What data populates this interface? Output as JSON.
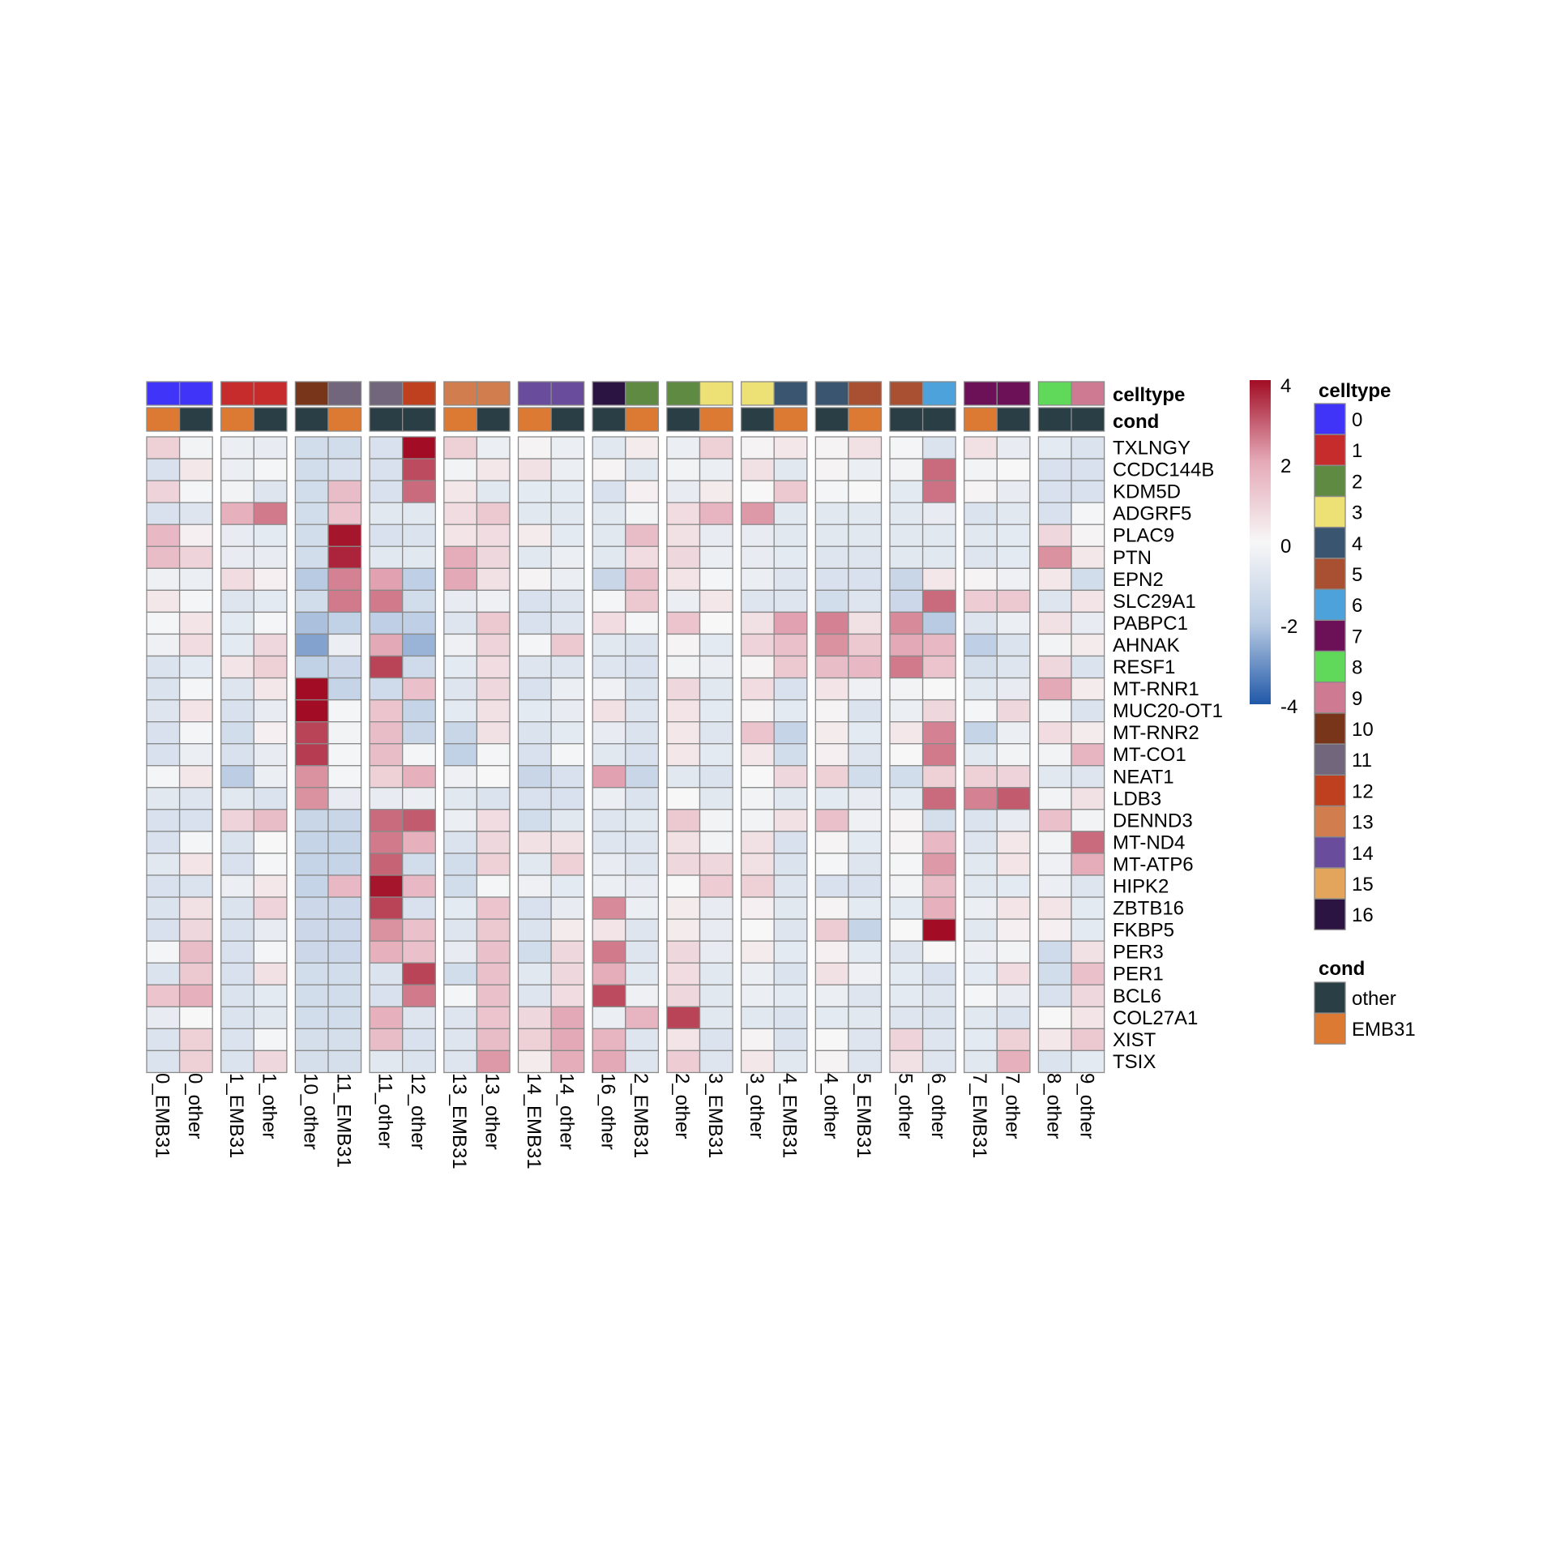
{
  "chart_data": {
    "type": "heatmap",
    "annotation_tracks": [
      "celltype",
      "cond"
    ],
    "columns": [
      "0_EMB31",
      "0_other",
      "1_EMB31",
      "1_other",
      "10_other",
      "11_EMB31",
      "11_other",
      "12_other",
      "13_EMB31",
      "13_other",
      "14_EMB31",
      "14_other",
      "16_other",
      "2_EMB31",
      "2_other",
      "3_EMB31",
      "3_other",
      "4_EMB31",
      "4_other",
      "5_EMB31",
      "5_other",
      "6_other",
      "7_EMB31",
      "7_other",
      "8_other",
      "9_other"
    ],
    "column_celltype": [
      "0",
      "0",
      "1",
      "1",
      "10",
      "11",
      "11",
      "12",
      "13",
      "13",
      "14",
      "14",
      "16",
      "2",
      "2",
      "3",
      "3",
      "4",
      "4",
      "5",
      "5",
      "6",
      "7",
      "7",
      "8",
      "9"
    ],
    "column_cond": [
      "EMB31",
      "other",
      "EMB31",
      "other",
      "other",
      "EMB31",
      "other",
      "other",
      "EMB31",
      "other",
      "EMB31",
      "other",
      "other",
      "EMB31",
      "other",
      "EMB31",
      "other",
      "EMB31",
      "other",
      "EMB31",
      "other",
      "other",
      "EMB31",
      "other",
      "other",
      "other"
    ],
    "rows": [
      "TXLNGY",
      "CCDC144B",
      "KDM5D",
      "ADGRF5",
      "PLAC9",
      "PTN",
      "EPN2",
      "SLC29A1",
      "PABPC1",
      "AHNAK",
      "RESF1",
      "MT-RNR1",
      "MUC20-OT1",
      "MT-RNR2",
      "MT-CO1",
      "NEAT1",
      "LDB3",
      "DENND3",
      "MT-ND4",
      "MT-ATP6",
      "HIPK2",
      "ZBTB16",
      "FKBP5",
      "PER3",
      "PER1",
      "BCL6",
      "COL27A1",
      "XIST",
      "TSIX"
    ],
    "values": [
      [
        1.0,
        -0.2,
        -0.4,
        -0.5,
        -1.2,
        -1.2,
        -1.0,
        4.1,
        1.0,
        -0.4,
        0.1,
        -0.4,
        -0.7,
        0.3,
        -0.4,
        1.0,
        0.1,
        0.4,
        0.1,
        0.6,
        -0.1,
        -0.9,
        0.6,
        -0.5,
        -0.6,
        -0.9
      ],
      [
        -1.0,
        0.4,
        -0.4,
        -0.1,
        -1.2,
        -1.0,
        -1.0,
        3.2,
        -0.2,
        0.4,
        0.6,
        -0.4,
        0.1,
        -0.7,
        -0.2,
        -0.4,
        0.6,
        -0.7,
        0.1,
        -0.4,
        -0.2,
        2.8,
        -0.2,
        0.0,
        -1.0,
        -1.0
      ],
      [
        0.9,
        -0.1,
        -0.2,
        -0.8,
        -1.2,
        1.5,
        -1.0,
        2.8,
        0.4,
        -0.7,
        -0.6,
        -0.6,
        -1.0,
        0.2,
        -0.5,
        0.3,
        0.0,
        1.2,
        -0.1,
        0.0,
        -0.6,
        2.7,
        0.1,
        -0.5,
        -1.0,
        -1.0
      ],
      [
        -1.0,
        -0.8,
        1.8,
        2.6,
        -1.2,
        1.3,
        -0.7,
        -0.7,
        0.7,
        1.2,
        -0.7,
        -0.7,
        -0.7,
        -0.2,
        0.7,
        1.7,
        2.2,
        -0.7,
        -0.7,
        -0.7,
        -0.7,
        -0.5,
        -0.9,
        -0.7,
        -1.0,
        -0.1
      ],
      [
        1.6,
        0.2,
        -0.5,
        -0.6,
        -1.2,
        3.9,
        -1.0,
        -0.9,
        0.5,
        0.7,
        0.3,
        -0.6,
        -0.7,
        1.5,
        0.6,
        -0.5,
        -0.5,
        -0.7,
        -0.7,
        -0.7,
        -0.7,
        -0.7,
        -0.7,
        -0.6,
        0.8,
        0.1
      ],
      [
        1.5,
        0.9,
        -0.5,
        -0.5,
        -1.2,
        3.7,
        -0.7,
        -0.7,
        1.9,
        0.8,
        -0.7,
        -0.4,
        -0.7,
        0.7,
        0.8,
        -0.4,
        -0.5,
        -0.6,
        -0.8,
        -0.8,
        -0.7,
        -0.7,
        -0.8,
        -0.6,
        2.3,
        0.4
      ],
      [
        -0.3,
        -0.4,
        0.7,
        0.2,
        -2.0,
        2.5,
        2.1,
        -1.8,
        2.0,
        0.6,
        0.1,
        -0.4,
        -1.5,
        1.4,
        0.5,
        -0.1,
        -0.4,
        -0.8,
        -1.0,
        -1.0,
        -1.5,
        0.4,
        0.1,
        -0.3,
        0.4,
        -1.2
      ],
      [
        0.4,
        -0.1,
        -0.8,
        -0.6,
        -1.2,
        2.6,
        2.6,
        -1.2,
        -0.5,
        -0.3,
        -1.0,
        -0.8,
        -0.1,
        1.2,
        -0.4,
        0.4,
        -0.8,
        -0.8,
        -1.2,
        -0.8,
        -1.4,
        2.8,
        1.1,
        1.2,
        -0.8,
        0.5
      ],
      [
        -0.1,
        0.5,
        -0.6,
        -0.1,
        -2.2,
        -1.7,
        -1.8,
        -1.8,
        -0.8,
        1.2,
        -1.0,
        -0.8,
        0.7,
        -0.1,
        1.3,
        0.0,
        0.6,
        2.1,
        2.5,
        0.6,
        2.4,
        -2.0,
        -0.8,
        -0.4,
        0.6,
        -0.5
      ],
      [
        -0.3,
        0.7,
        -0.6,
        0.8,
        -2.7,
        -0.4,
        2.0,
        -2.4,
        -0.3,
        0.9,
        -0.1,
        1.2,
        -0.7,
        -0.9,
        0.1,
        -0.6,
        0.9,
        1.4,
        2.3,
        1.2,
        2.0,
        1.6,
        -1.8,
        -0.9,
        -0.2,
        0.3
      ],
      [
        -0.9,
        -0.6,
        0.5,
        1.0,
        -1.7,
        -1.4,
        3.3,
        -1.3,
        -0.6,
        0.7,
        -0.8,
        -0.8,
        -0.8,
        -1.0,
        -0.2,
        -0.4,
        0.1,
        1.2,
        1.5,
        1.6,
        2.6,
        1.3,
        -1.1,
        -0.8,
        0.8,
        -0.9
      ],
      [
        -0.9,
        -0.1,
        -0.8,
        0.4,
        4.3,
        -1.6,
        -1.3,
        1.4,
        -0.8,
        0.8,
        -1.0,
        -0.4,
        -0.3,
        -0.9,
        0.8,
        -0.7,
        0.7,
        -1.0,
        0.5,
        -0.3,
        -0.2,
        0.0,
        -0.7,
        -0.5,
        2.0,
        0.3
      ],
      [
        -0.8,
        0.5,
        -1.0,
        -0.5,
        4.3,
        -0.1,
        1.3,
        -1.6,
        -0.6,
        0.6,
        -0.6,
        -0.5,
        0.6,
        -0.8,
        0.5,
        -0.6,
        0.1,
        -0.6,
        0.1,
        -0.9,
        -0.4,
        0.8,
        -0.1,
        0.8,
        -0.2,
        -0.9
      ],
      [
        -1.0,
        -0.1,
        -1.2,
        0.2,
        3.3,
        -0.2,
        1.5,
        -1.5,
        -1.5,
        0.6,
        -0.9,
        -0.6,
        -0.5,
        -0.9,
        0.4,
        -0.8,
        1.3,
        -1.6,
        0.3,
        -0.6,
        0.4,
        2.5,
        -1.6,
        -0.4,
        0.7,
        0.3
      ],
      [
        -1.0,
        -0.4,
        -1.0,
        -0.5,
        3.4,
        -0.1,
        1.5,
        -0.1,
        -1.7,
        -0.1,
        -1.0,
        -0.1,
        -0.7,
        -1.0,
        0.4,
        -0.6,
        0.4,
        -1.2,
        0.2,
        -0.8,
        0.0,
        2.6,
        -0.7,
        -0.2,
        -0.2,
        1.7
      ],
      [
        -0.1,
        0.4,
        -1.9,
        -0.4,
        2.3,
        -0.1,
        1.0,
        1.8,
        -0.3,
        0.0,
        -1.5,
        -1.0,
        2.1,
        -1.5,
        -0.7,
        -0.9,
        0.0,
        0.8,
        1.0,
        -1.2,
        -1.2,
        1.0,
        1.0,
        0.9,
        -0.7,
        -0.8
      ],
      [
        -0.7,
        -0.8,
        -0.7,
        -0.9,
        2.3,
        -0.5,
        -0.5,
        -0.4,
        -0.7,
        -0.9,
        -1.0,
        -1.0,
        -0.4,
        -0.9,
        0.0,
        -0.7,
        -0.2,
        -0.7,
        -0.6,
        -0.5,
        -0.6,
        2.8,
        2.5,
        3.0,
        -0.2,
        0.6
      ],
      [
        -1.0,
        -1.0,
        0.9,
        1.5,
        -1.5,
        -1.5,
        2.8,
        3.0,
        -0.4,
        0.7,
        -1.2,
        -0.7,
        -0.8,
        -0.7,
        1.2,
        -0.2,
        -0.2,
        0.6,
        1.4,
        -0.3,
        0.1,
        -1.1,
        -0.9,
        -0.5,
        1.4,
        -0.2
      ],
      [
        -1.0,
        -0.1,
        -0.9,
        0.0,
        -1.6,
        -1.6,
        2.6,
        1.8,
        -0.9,
        0.8,
        0.6,
        0.6,
        -0.8,
        -0.8,
        0.6,
        -0.2,
        0.6,
        -1.0,
        0.1,
        -0.6,
        0.1,
        1.6,
        -0.8,
        0.4,
        -0.2,
        2.8
      ],
      [
        -0.7,
        0.5,
        -1.0,
        -0.1,
        -1.6,
        -1.6,
        2.9,
        -1.2,
        -1.2,
        1.0,
        -0.7,
        1.0,
        -0.5,
        -0.8,
        0.8,
        0.8,
        0.6,
        -0.9,
        -0.1,
        -0.8,
        -0.1,
        2.2,
        -0.7,
        0.5,
        -0.3,
        1.9
      ],
      [
        -1.0,
        -0.9,
        -0.4,
        0.4,
        -1.6,
        1.6,
        3.9,
        1.6,
        -1.2,
        -0.1,
        -0.3,
        -0.6,
        -0.4,
        -0.5,
        0.0,
        1.1,
        1.0,
        -0.8,
        -1.0,
        -1.0,
        -0.2,
        1.5,
        -0.7,
        -0.6,
        -0.4,
        -0.8
      ],
      [
        -0.9,
        0.6,
        -0.9,
        0.9,
        -1.4,
        -1.4,
        3.3,
        -1.0,
        -0.6,
        1.3,
        -1.0,
        -0.5,
        2.4,
        -0.4,
        0.3,
        -0.5,
        0.2,
        -0.7,
        0.1,
        -0.6,
        -0.6,
        1.8,
        -0.4,
        0.5,
        0.5,
        -0.6
      ],
      [
        -1.0,
        0.8,
        -1.0,
        -0.5,
        -1.4,
        -1.4,
        2.3,
        1.4,
        -0.8,
        1.2,
        -0.9,
        0.3,
        0.5,
        -0.8,
        0.3,
        -0.5,
        0.0,
        -0.8,
        1.1,
        -1.6,
        0.0,
        4.0,
        -0.7,
        0.2,
        0.2,
        -0.6
      ],
      [
        -0.1,
        1.5,
        -1.0,
        -0.1,
        -1.4,
        -1.4,
        1.8,
        1.4,
        -0.5,
        1.4,
        -1.2,
        0.8,
        2.6,
        -0.8,
        0.8,
        -0.5,
        0.3,
        -0.6,
        0.2,
        -0.6,
        -0.8,
        0.0,
        -0.4,
        -0.2,
        -1.3,
        0.6
      ],
      [
        -0.9,
        1.2,
        -1.0,
        0.6,
        -1.2,
        -1.2,
        -0.9,
        3.3,
        -1.2,
        1.4,
        -0.7,
        0.8,
        1.9,
        -0.7,
        0.7,
        -0.7,
        -0.4,
        -0.9,
        0.6,
        -0.3,
        -0.6,
        -1.0,
        -0.6,
        0.7,
        -1.2,
        1.4
      ],
      [
        1.3,
        1.8,
        -0.9,
        -0.6,
        -1.2,
        -1.2,
        -1.0,
        2.6,
        -0.1,
        1.4,
        -0.8,
        0.7,
        3.2,
        -0.3,
        0.8,
        -0.7,
        -0.4,
        -0.6,
        -0.4,
        -0.8,
        -0.6,
        -0.8,
        -0.1,
        -0.5,
        -1.0,
        0.8
      ],
      [
        -0.5,
        0.0,
        -0.9,
        -0.7,
        -1.2,
        -1.2,
        1.8,
        -0.8,
        -0.8,
        1.3,
        0.8,
        2.0,
        -0.4,
        1.7,
        3.3,
        -0.7,
        -0.7,
        -0.9,
        -0.6,
        -0.7,
        -0.8,
        -0.9,
        -0.7,
        -0.9,
        0.0,
        0.5
      ],
      [
        -0.9,
        1.0,
        -0.9,
        -0.1,
        -1.1,
        -1.1,
        1.5,
        -1.0,
        -0.8,
        1.5,
        1.0,
        2.0,
        1.7,
        -0.8,
        0.5,
        -0.9,
        0.1,
        -0.9,
        0.0,
        -0.8,
        0.9,
        -0.8,
        -0.6,
        1.0,
        0.4,
        1.2
      ],
      [
        -0.9,
        1.0,
        -0.9,
        0.8,
        -1.1,
        -1.1,
        -0.7,
        -0.9,
        -0.8,
        2.2,
        0.3,
        1.9,
        2.0,
        -0.8,
        1.1,
        -0.8,
        0.4,
        -0.7,
        0.1,
        -0.8,
        0.6,
        -0.8,
        -0.7,
        1.8,
        -0.9,
        -0.6
      ]
    ],
    "color_scale": {
      "min": -4,
      "max": 4,
      "ticks": [
        "4",
        "2",
        "0",
        "-2",
        "-4"
      ],
      "colors": [
        "#2058A8",
        "#B9CBE3",
        "#F7F7F7",
        "#E4A9B7",
        "#A20D25"
      ]
    },
    "legend": {
      "celltype": {
        "title": "celltype",
        "labels": [
          "0",
          "1",
          "2",
          "3",
          "4",
          "5",
          "6",
          "7",
          "8",
          "9",
          "10",
          "11",
          "12",
          "13",
          "14",
          "15",
          "16"
        ]
      },
      "cond": {
        "title": "cond",
        "labels": [
          "other",
          "EMB31"
        ]
      }
    },
    "colors": {
      "celltype": {
        "0": "#3F34F8",
        "1": "#C62C2C",
        "2": "#5E8A42",
        "3": "#EDE176",
        "4": "#3A5570",
        "5": "#A95032",
        "6": "#4DA2DC",
        "7": "#6C1157",
        "8": "#60D85A",
        "9": "#CE7A92",
        "10": "#793519",
        "11": "#71667C",
        "12": "#BE401E",
        "13": "#D27D4E",
        "14": "#6A4C9C",
        "15": "#E3A55C",
        "16": "#2B1342"
      },
      "cond": {
        "other": "#2A3E45",
        "EMB31": "#DC7A34"
      }
    }
  }
}
